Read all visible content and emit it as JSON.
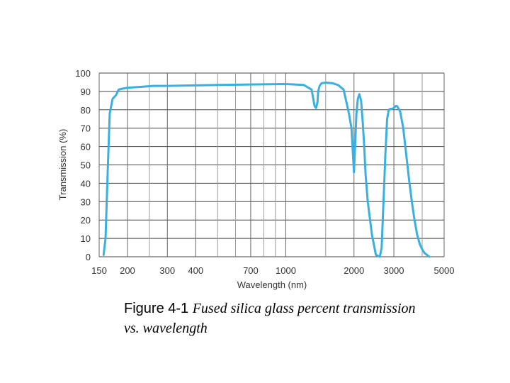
{
  "chart_data": {
    "type": "line",
    "xlabel": "Wavelength (nm)",
    "ylabel": "Transmission (%)",
    "x_scale": "log",
    "xlim": [
      150,
      5000
    ],
    "ylim": [
      0,
      100
    ],
    "x_ticks": [
      150,
      200,
      300,
      400,
      700,
      1000,
      2000,
      3000,
      5000
    ],
    "x_tick_labels": [
      "150",
      "200",
      "300",
      "400",
      "700",
      "1000",
      "2000",
      "3000",
      "5000"
    ],
    "y_ticks": [
      0,
      10,
      20,
      30,
      40,
      50,
      60,
      70,
      80,
      90,
      100
    ],
    "y_tick_labels": [
      "0",
      "10",
      "20",
      "30",
      "40",
      "50",
      "60",
      "70",
      "80",
      "90",
      "100"
    ],
    "x_minor_gridlines": [
      250,
      500,
      600,
      800,
      900,
      1500,
      4000
    ],
    "grid": true,
    "line_color": "#3ab0e0",
    "series": [
      {
        "x": [
          157,
          160,
          163,
          167,
          172,
          178,
          183,
          190,
          200,
          230,
          260,
          300,
          400,
          500,
          700,
          1000,
          1200,
          1300,
          1340,
          1360,
          1380,
          1390,
          1410,
          1440,
          1500,
          1600,
          1700,
          1800,
          1900,
          1950,
          2000,
          2050,
          2080,
          2110,
          2150,
          2190,
          2220,
          2250,
          2300,
          2400,
          2500,
          2600,
          2650,
          2700,
          2750,
          2800,
          2850,
          2900,
          2950,
          3000,
          3050,
          3100,
          3200,
          3300,
          3400,
          3500,
          3600,
          3700,
          3800,
          3900,
          4000,
          4100,
          4200,
          4300
        ],
        "y": [
          1,
          10,
          40,
          78,
          86,
          88,
          91,
          91.5,
          92,
          92.5,
          93,
          93,
          93.3,
          93.5,
          93.8,
          94,
          93.5,
          91,
          82,
          81,
          84,
          90,
          93,
          94.5,
          94.8,
          94.5,
          93.5,
          91,
          78,
          70,
          46,
          78,
          86,
          88.5,
          85,
          72,
          60,
          45,
          30,
          12,
          1,
          0,
          5,
          30,
          55,
          75,
          80,
          80.5,
          80.5,
          81,
          82,
          82,
          79,
          70,
          56,
          42,
          30,
          20,
          12,
          7,
          4,
          2,
          1,
          0
        ]
      }
    ]
  },
  "caption": {
    "label": "Figure 4-1",
    "text": "Fused silica glass percent transmission vs. wavelength"
  }
}
